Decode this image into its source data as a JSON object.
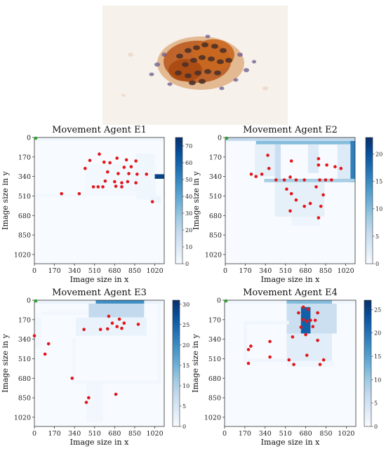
{
  "image": {
    "description_icon": "cell-cluster-micrograph",
    "colors": {
      "background": "#f4efe8",
      "cell_orange": "#c8641e",
      "cell_dark": "#4a2f2a",
      "nucleus": "#6b4f8a"
    }
  },
  "chart_data": [
    {
      "type": "heatmap",
      "title": "Movement Agent  E1",
      "xlabel": "Image size in x",
      "ylabel": "Image size in y",
      "xticks": [
        0,
        170,
        340,
        510,
        680,
        850,
        1020
      ],
      "yticks": [
        0,
        170,
        340,
        510,
        680,
        850,
        1020
      ],
      "xlim": [
        0,
        1100
      ],
      "ylim": [
        1100,
        0
      ],
      "colorbar": {
        "min": 0,
        "max": 75,
        "ticks": [
          0,
          10,
          20,
          30,
          40,
          50,
          60,
          70
        ],
        "colormap": "Blues"
      },
      "start_point": {
        "x": 0,
        "y": 0,
        "color": "#2ca02c"
      },
      "heat_cells": [
        {
          "x": 0,
          "y": 0,
          "w": 1100,
          "h": 30,
          "v": 3
        },
        {
          "x": 430,
          "y": 230,
          "w": 600,
          "h": 280,
          "v": 2
        },
        {
          "x": 860,
          "y": 140,
          "w": 160,
          "h": 400,
          "v": 3
        },
        {
          "x": 1020,
          "y": 320,
          "w": 80,
          "h": 40,
          "v": 70
        },
        {
          "x": 0,
          "y": 490,
          "w": 430,
          "h": 30,
          "v": 2
        },
        {
          "x": 980,
          "y": 510,
          "w": 90,
          "h": 60,
          "v": 4
        }
      ],
      "points": [
        {
          "x": 550,
          "y": 145
        },
        {
          "x": 470,
          "y": 200
        },
        {
          "x": 590,
          "y": 215
        },
        {
          "x": 640,
          "y": 220
        },
        {
          "x": 700,
          "y": 180
        },
        {
          "x": 780,
          "y": 195
        },
        {
          "x": 860,
          "y": 205
        },
        {
          "x": 430,
          "y": 270
        },
        {
          "x": 760,
          "y": 260
        },
        {
          "x": 820,
          "y": 255
        },
        {
          "x": 620,
          "y": 300
        },
        {
          "x": 710,
          "y": 315
        },
        {
          "x": 800,
          "y": 315
        },
        {
          "x": 870,
          "y": 320
        },
        {
          "x": 950,
          "y": 320
        },
        {
          "x": 600,
          "y": 380
        },
        {
          "x": 680,
          "y": 385
        },
        {
          "x": 740,
          "y": 395
        },
        {
          "x": 790,
          "y": 385
        },
        {
          "x": 860,
          "y": 395
        },
        {
          "x": 500,
          "y": 430
        },
        {
          "x": 540,
          "y": 430
        },
        {
          "x": 580,
          "y": 430
        },
        {
          "x": 690,
          "y": 425
        },
        {
          "x": 740,
          "y": 430
        },
        {
          "x": 230,
          "y": 490
        },
        {
          "x": 380,
          "y": 490
        },
        {
          "x": 1000,
          "y": 560
        }
      ]
    },
    {
      "type": "heatmap",
      "title": "Movement Agent  E2",
      "xlabel": "Image size in x",
      "ylabel": "Image size in y",
      "xticks": [
        0,
        170,
        340,
        510,
        680,
        850,
        1020
      ],
      "yticks": [
        0,
        170,
        340,
        510,
        680,
        850,
        1020
      ],
      "xlim": [
        0,
        1100
      ],
      "ylim": [
        1100,
        0
      ],
      "colorbar": {
        "min": 0,
        "max": 23,
        "ticks": [
          0,
          5,
          10,
          15,
          20
        ],
        "colormap": "Blues"
      },
      "start_point": {
        "x": 0,
        "y": 0,
        "color": "#2ca02c"
      },
      "heat_cells": [
        {
          "x": 0,
          "y": 0,
          "w": 1100,
          "h": 30,
          "v": 6
        },
        {
          "x": 260,
          "y": 30,
          "w": 840,
          "h": 30,
          "v": 10
        },
        {
          "x": 1060,
          "y": 30,
          "w": 40,
          "h": 360,
          "v": 16
        },
        {
          "x": 250,
          "y": 60,
          "w": 180,
          "h": 280,
          "v": 2
        },
        {
          "x": 420,
          "y": 60,
          "w": 50,
          "h": 360,
          "v": 5
        },
        {
          "x": 700,
          "y": 60,
          "w": 90,
          "h": 250,
          "v": 3
        },
        {
          "x": 950,
          "y": 60,
          "w": 110,
          "h": 300,
          "v": 3
        },
        {
          "x": 330,
          "y": 360,
          "w": 770,
          "h": 30,
          "v": 8
        },
        {
          "x": 420,
          "y": 390,
          "w": 420,
          "h": 300,
          "v": 2
        },
        {
          "x": 560,
          "y": 690,
          "w": 240,
          "h": 80,
          "v": 1
        }
      ],
      "points": [
        {
          "x": 360,
          "y": 155
        },
        {
          "x": 560,
          "y": 205
        },
        {
          "x": 790,
          "y": 185
        },
        {
          "x": 930,
          "y": 255
        },
        {
          "x": 370,
          "y": 270
        },
        {
          "x": 790,
          "y": 240
        },
        {
          "x": 860,
          "y": 240
        },
        {
          "x": 980,
          "y": 270
        },
        {
          "x": 220,
          "y": 320
        },
        {
          "x": 260,
          "y": 340
        },
        {
          "x": 310,
          "y": 320
        },
        {
          "x": 550,
          "y": 345
        },
        {
          "x": 430,
          "y": 370
        },
        {
          "x": 500,
          "y": 370
        },
        {
          "x": 600,
          "y": 370
        },
        {
          "x": 670,
          "y": 370
        },
        {
          "x": 800,
          "y": 370
        },
        {
          "x": 850,
          "y": 370
        },
        {
          "x": 900,
          "y": 370
        },
        {
          "x": 770,
          "y": 430
        },
        {
          "x": 520,
          "y": 450
        },
        {
          "x": 560,
          "y": 490
        },
        {
          "x": 830,
          "y": 500
        },
        {
          "x": 600,
          "y": 545
        },
        {
          "x": 720,
          "y": 575
        },
        {
          "x": 550,
          "y": 640
        },
        {
          "x": 670,
          "y": 600
        },
        {
          "x": 810,
          "y": 600
        },
        {
          "x": 790,
          "y": 700
        }
      ]
    },
    {
      "type": "heatmap",
      "title": "Movement Agent  E3",
      "xlabel": "Image size in x",
      "ylabel": "Image size in y",
      "xticks": [
        0,
        170,
        340,
        510,
        680,
        850,
        1020
      ],
      "yticks": [
        0,
        170,
        340,
        510,
        680,
        850,
        1020
      ],
      "xlim": [
        0,
        1100
      ],
      "ylim": [
        1100,
        0
      ],
      "colorbar": {
        "min": 0,
        "max": 31,
        "ticks": [
          0,
          5,
          10,
          15,
          20,
          25,
          30
        ],
        "colormap": "Blues"
      },
      "start_point": {
        "x": 0,
        "y": 0,
        "color": "#2ca02c"
      },
      "heat_cells": [
        {
          "x": 0,
          "y": 0,
          "w": 1080,
          "h": 30,
          "v": 2
        },
        {
          "x": 520,
          "y": 0,
          "w": 410,
          "h": 30,
          "v": 20
        },
        {
          "x": 460,
          "y": 30,
          "w": 470,
          "h": 120,
          "v": 8
        },
        {
          "x": 350,
          "y": 150,
          "w": 600,
          "h": 160,
          "v": 2
        },
        {
          "x": 0,
          "y": 150,
          "w": 60,
          "h": 260,
          "v": 1
        },
        {
          "x": 60,
          "y": 100,
          "w": 400,
          "h": 30,
          "v": 1
        },
        {
          "x": 320,
          "y": 330,
          "w": 30,
          "h": 400,
          "v": 1
        },
        {
          "x": 330,
          "y": 700,
          "w": 740,
          "h": 30,
          "v": 1
        },
        {
          "x": 1040,
          "y": 30,
          "w": 30,
          "h": 700,
          "v": 1
        },
        {
          "x": 440,
          "y": 730,
          "w": 140,
          "h": 330,
          "v": 1
        }
      ],
      "points": [
        {
          "x": 630,
          "y": 140
        },
        {
          "x": 720,
          "y": 165
        },
        {
          "x": 660,
          "y": 200
        },
        {
          "x": 760,
          "y": 200
        },
        {
          "x": 880,
          "y": 210
        },
        {
          "x": 700,
          "y": 230
        },
        {
          "x": 740,
          "y": 245
        },
        {
          "x": 620,
          "y": 250
        },
        {
          "x": 420,
          "y": 255
        },
        {
          "x": 560,
          "y": 255
        },
        {
          "x": 0,
          "y": 310
        },
        {
          "x": 120,
          "y": 380
        },
        {
          "x": 90,
          "y": 470
        },
        {
          "x": 320,
          "y": 680
        },
        {
          "x": 690,
          "y": 820
        },
        {
          "x": 460,
          "y": 850
        },
        {
          "x": 440,
          "y": 890
        }
      ]
    },
    {
      "type": "heatmap",
      "title": "Movement Agent  E4",
      "xlabel": "Image size in x",
      "ylabel": "Image size in y",
      "xticks": [
        0,
        170,
        340,
        510,
        680,
        850,
        1020
      ],
      "yticks": [
        0,
        170,
        340,
        510,
        680,
        850,
        1020
      ],
      "xlim": [
        0,
        1100
      ],
      "ylim": [
        1100,
        0
      ],
      "colorbar": {
        "min": 0,
        "max": 27,
        "ticks": [
          0,
          5,
          10,
          15,
          20,
          25
        ],
        "colormap": "Blues"
      },
      "start_point": {
        "x": 0,
        "y": 0,
        "color": "#2ca02c"
      },
      "heat_cells": [
        {
          "x": 0,
          "y": 0,
          "w": 1100,
          "h": 30,
          "v": 1
        },
        {
          "x": 520,
          "y": 0,
          "w": 380,
          "h": 30,
          "v": 12
        },
        {
          "x": 600,
          "y": 30,
          "w": 200,
          "h": 180,
          "v": 16
        },
        {
          "x": 520,
          "y": 30,
          "w": 420,
          "h": 260,
          "v": 6
        },
        {
          "x": 640,
          "y": 60,
          "w": 80,
          "h": 240,
          "v": 22
        },
        {
          "x": 520,
          "y": 290,
          "w": 380,
          "h": 240,
          "v": 3
        },
        {
          "x": 160,
          "y": 180,
          "w": 380,
          "h": 30,
          "v": 1
        },
        {
          "x": 160,
          "y": 210,
          "w": 30,
          "h": 330,
          "v": 1
        },
        {
          "x": 190,
          "y": 510,
          "w": 330,
          "h": 30,
          "v": 1
        },
        {
          "x": 520,
          "y": 530,
          "w": 400,
          "h": 50,
          "v": 1
        }
      ],
      "points": [
        {
          "x": 660,
          "y": 60
        },
        {
          "x": 700,
          "y": 80
        },
        {
          "x": 620,
          "y": 110
        },
        {
          "x": 780,
          "y": 110
        },
        {
          "x": 660,
          "y": 170
        },
        {
          "x": 720,
          "y": 175
        },
        {
          "x": 690,
          "y": 185
        },
        {
          "x": 760,
          "y": 175
        },
        {
          "x": 640,
          "y": 235
        },
        {
          "x": 740,
          "y": 230
        },
        {
          "x": 570,
          "y": 320
        },
        {
          "x": 680,
          "y": 300
        },
        {
          "x": 780,
          "y": 350
        },
        {
          "x": 380,
          "y": 360
        },
        {
          "x": 220,
          "y": 400
        },
        {
          "x": 200,
          "y": 430
        },
        {
          "x": 380,
          "y": 495
        },
        {
          "x": 690,
          "y": 480
        },
        {
          "x": 540,
          "y": 520
        },
        {
          "x": 580,
          "y": 560
        },
        {
          "x": 830,
          "y": 520
        },
        {
          "x": 800,
          "y": 560
        },
        {
          "x": 200,
          "y": 550
        }
      ]
    }
  ]
}
